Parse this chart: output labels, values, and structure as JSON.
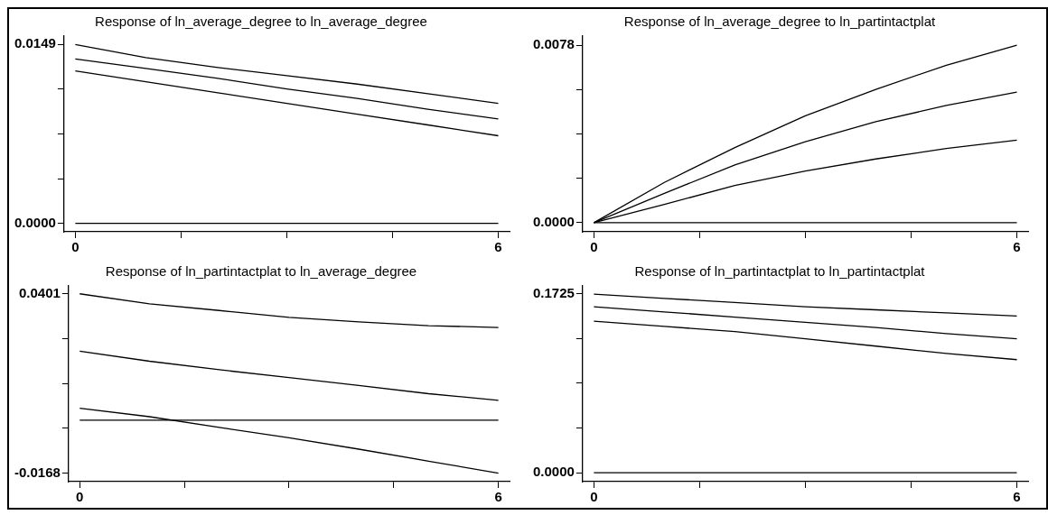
{
  "chart_data": [
    {
      "type": "line",
      "title": "Response of ln_average_degree to ln_average_degree",
      "x": [
        0,
        1,
        2,
        3,
        4,
        5,
        6
      ],
      "xlim": [
        -0.16,
        6.16
      ],
      "xticks": [
        {
          "value": 0,
          "label": "0"
        },
        {
          "value": 1.5,
          "label": null
        },
        {
          "value": 3,
          "label": null
        },
        {
          "value": 4.5,
          "label": null
        },
        {
          "value": 6,
          "label": "6"
        }
      ],
      "ylim": [
        -0.0007,
        0.0156
      ],
      "yticks": [
        {
          "value": 0,
          "label": "0.0000"
        },
        {
          "value": 0.003725,
          "label": null
        },
        {
          "value": 0.00745,
          "label": null
        },
        {
          "value": 0.011175,
          "label": null
        },
        0.0149
      ],
      "grid": false,
      "series": [
        {
          "color": "#000000",
          "values": [
            0.0149,
            0.0138,
            0.013,
            0.0123,
            0.0116,
            0.0108,
            0.01
          ]
        },
        {
          "color": "#000000",
          "values": [
            0.0137,
            0.0129,
            0.0121,
            0.0112,
            0.0104,
            0.0095,
            0.0087
          ]
        },
        {
          "color": "#000000",
          "values": [
            0.0127,
            0.0118,
            0.0109,
            0.01,
            0.0091,
            0.0082,
            0.0073
          ]
        }
      ],
      "ref_lines": [
        {
          "axis": "y",
          "value": 0,
          "color": "#000000"
        }
      ]
    },
    {
      "type": "line",
      "title": "Response of ln_average_degree to ln_partintactplat",
      "x": [
        0,
        1,
        2,
        3,
        4,
        5,
        6
      ],
      "xlim": [
        -0.16,
        6.16
      ],
      "xticks": [
        {
          "value": 0,
          "label": "0"
        },
        {
          "value": 1.5,
          "label": null
        },
        {
          "value": 3,
          "label": null
        },
        {
          "value": 4.5,
          "label": null
        },
        {
          "value": 6,
          "label": "6"
        }
      ],
      "ylim": [
        -0.0004,
        0.0082
      ],
      "yticks": [
        {
          "value": 0,
          "label": "0.0000"
        },
        {
          "value": 0.00195,
          "label": null
        },
        {
          "value": 0.0039,
          "label": null
        },
        {
          "value": 0.00585,
          "label": null
        },
        0.0078
      ],
      "grid": false,
      "series": [
        {
          "color": "#000000",
          "values": [
            0,
            0.00177,
            0.0033,
            0.0047,
            0.00586,
            0.00692,
            0.0078
          ]
        },
        {
          "color": "#000000",
          "values": [
            0,
            0.00129,
            0.00254,
            0.00356,
            0.00444,
            0.00515,
            0.00574
          ]
        },
        {
          "color": "#000000",
          "values": [
            0,
            0.0008,
            0.00164,
            0.00227,
            0.0028,
            0.00326,
            0.00363
          ]
        }
      ],
      "ref_lines": [
        {
          "axis": "y",
          "value": 0,
          "color": "#000000"
        }
      ]
    },
    {
      "type": "line",
      "title": "Response of ln_partintactplat to ln_average_degree",
      "x": [
        0,
        1,
        2,
        3,
        4,
        5,
        6
      ],
      "xlim": [
        -0.16,
        6.16
      ],
      "xticks": [
        {
          "value": 0,
          "label": "0"
        },
        {
          "value": 1.5,
          "label": null
        },
        {
          "value": 3,
          "label": null
        },
        {
          "value": 4.5,
          "label": null
        },
        {
          "value": 6,
          "label": "6"
        }
      ],
      "ylim": [
        -0.0195,
        0.0426
      ],
      "yticks": [
        -0.0168,
        {
          "value": -0.002575,
          "label": null
        },
        {
          "value": 0.01165,
          "label": null
        },
        {
          "value": 0.025875,
          "label": null
        },
        0.0401
      ],
      "grid": false,
      "series": [
        {
          "color": "#000000",
          "values": [
            0.0401,
            0.0369,
            0.0348,
            0.0326,
            0.0312,
            0.03,
            0.0294
          ]
        },
        {
          "color": "#000000",
          "values": [
            0.0219,
            0.0187,
            0.016,
            0.0135,
            0.011,
            0.0084,
            0.0063
          ]
        },
        {
          "color": "#000000",
          "values": [
            0.0038,
            0.0011,
            -0.0023,
            -0.0056,
            -0.0092,
            -0.013,
            -0.0168
          ]
        }
      ],
      "ref_lines": [
        {
          "axis": "y",
          "value": 0,
          "color": "#000000"
        }
      ]
    },
    {
      "type": "line",
      "title": "Response of ln_partintactplat to ln_partintactplat",
      "x": [
        0,
        1,
        2,
        3,
        4,
        5,
        6
      ],
      "xlim": [
        -0.16,
        6.16
      ],
      "xticks": [
        {
          "value": 0,
          "label": "0"
        },
        {
          "value": 1.5,
          "label": null
        },
        {
          "value": 3,
          "label": null
        },
        {
          "value": 4.5,
          "label": null
        },
        {
          "value": 6,
          "label": "6"
        }
      ],
      "ylim": [
        -0.0085,
        0.18
      ],
      "yticks": [
        {
          "value": 0,
          "label": "0.0000"
        },
        {
          "value": 0.043125,
          "label": null
        },
        {
          "value": 0.08625,
          "label": null
        },
        {
          "value": 0.129375,
          "label": null
        },
        0.1725
      ],
      "grid": false,
      "series": [
        {
          "color": "#000000",
          "values": [
            0.172,
            0.168,
            0.164,
            0.16,
            0.157,
            0.154,
            0.151
          ]
        },
        {
          "color": "#000000",
          "values": [
            0.16,
            0.155,
            0.15,
            0.145,
            0.14,
            0.134,
            0.129
          ]
        },
        {
          "color": "#000000",
          "values": [
            0.146,
            0.141,
            0.136,
            0.129,
            0.122,
            0.115,
            0.109
          ]
        }
      ],
      "ref_lines": [
        {
          "axis": "y",
          "value": 0,
          "color": "#000000"
        }
      ]
    }
  ]
}
